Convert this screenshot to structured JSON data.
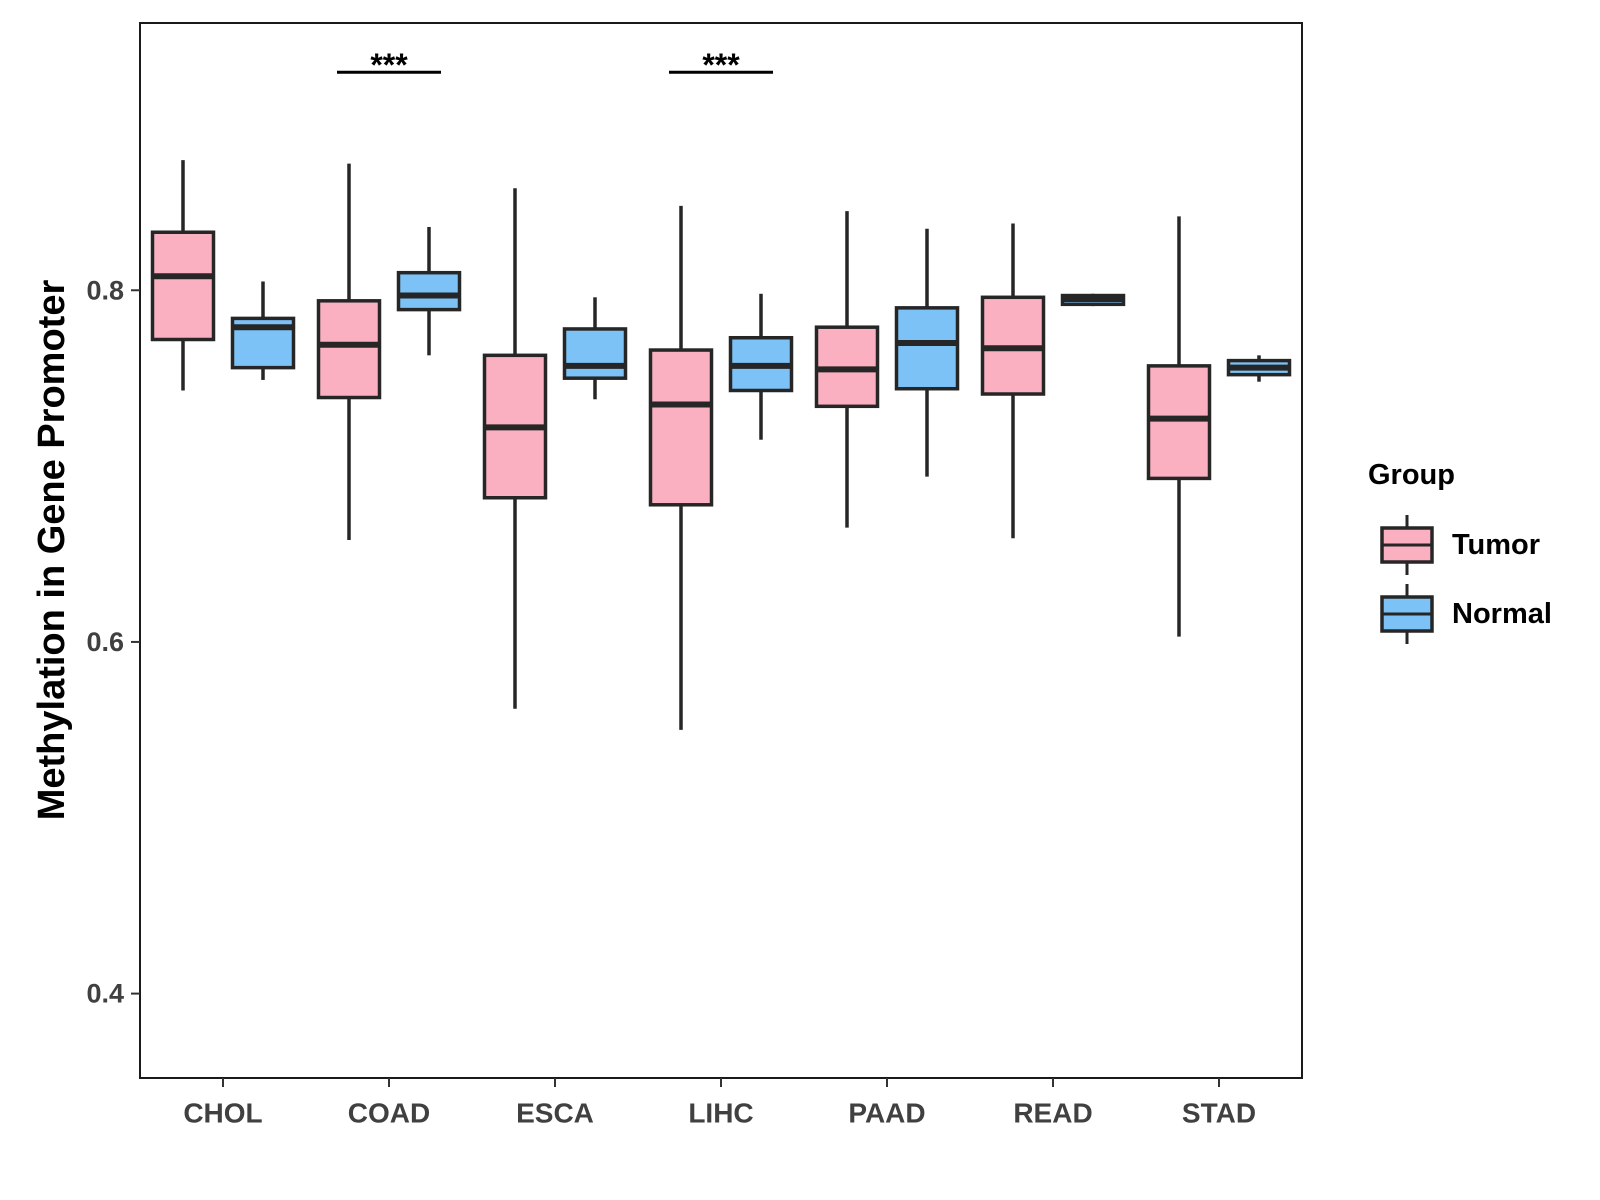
{
  "chart_data": {
    "type": "boxplot",
    "title": "",
    "xlabel": "",
    "ylabel": "Methylation in Gene Promoter",
    "ylim": [
      0.352,
      0.952
    ],
    "yticks": [
      0.4,
      0.6,
      0.8
    ],
    "ytick_labels": [
      "0.4",
      "0.6",
      "0.8"
    ],
    "categories": [
      "CHOL",
      "COAD",
      "ESCA",
      "LIHC",
      "PAAD",
      "READ",
      "STAD"
    ],
    "legend": {
      "title": "Group",
      "position": "right",
      "entries": [
        {
          "name": "Tumor",
          "color": "#fbb0c2"
        },
        {
          "name": "Normal",
          "color": "#7cc2f7"
        }
      ]
    },
    "series": [
      {
        "name": "Tumor",
        "color": "#fbb0c2",
        "boxes": [
          {
            "category": "CHOL",
            "whisker_low": 0.743,
            "q1": 0.772,
            "median": 0.808,
            "q3": 0.833,
            "whisker_high": 0.874
          },
          {
            "category": "COAD",
            "whisker_low": 0.658,
            "q1": 0.739,
            "median": 0.769,
            "q3": 0.794,
            "whisker_high": 0.872
          },
          {
            "category": "ESCA",
            "whisker_low": 0.562,
            "q1": 0.682,
            "median": 0.722,
            "q3": 0.763,
            "whisker_high": 0.858
          },
          {
            "category": "LIHC",
            "whisker_low": 0.55,
            "q1": 0.678,
            "median": 0.735,
            "q3": 0.766,
            "whisker_high": 0.848
          },
          {
            "category": "PAAD",
            "whisker_low": 0.665,
            "q1": 0.734,
            "median": 0.755,
            "q3": 0.779,
            "whisker_high": 0.845
          },
          {
            "category": "READ",
            "whisker_low": 0.659,
            "q1": 0.741,
            "median": 0.767,
            "q3": 0.796,
            "whisker_high": 0.838
          },
          {
            "category": "STAD",
            "whisker_low": 0.603,
            "q1": 0.693,
            "median": 0.727,
            "q3": 0.757,
            "whisker_high": 0.842
          }
        ]
      },
      {
        "name": "Normal",
        "color": "#7cc2f7",
        "boxes": [
          {
            "category": "CHOL",
            "whisker_low": 0.749,
            "q1": 0.756,
            "median": 0.779,
            "q3": 0.784,
            "whisker_high": 0.805
          },
          {
            "category": "COAD",
            "whisker_low": 0.763,
            "q1": 0.789,
            "median": 0.797,
            "q3": 0.81,
            "whisker_high": 0.836
          },
          {
            "category": "ESCA",
            "whisker_low": 0.738,
            "q1": 0.75,
            "median": 0.757,
            "q3": 0.778,
            "whisker_high": 0.796
          },
          {
            "category": "LIHC",
            "whisker_low": 0.715,
            "q1": 0.743,
            "median": 0.757,
            "q3": 0.773,
            "whisker_high": 0.798
          },
          {
            "category": "PAAD",
            "whisker_low": 0.694,
            "q1": 0.744,
            "median": 0.77,
            "q3": 0.79,
            "whisker_high": 0.835
          },
          {
            "category": "READ",
            "whisker_low": 0.791,
            "q1": 0.792,
            "median": 0.795,
            "q3": 0.797,
            "whisker_high": 0.798
          },
          {
            "category": "STAD",
            "whisker_low": 0.748,
            "q1": 0.752,
            "median": 0.756,
            "q3": 0.76,
            "whisker_high": 0.763
          }
        ]
      }
    ],
    "annotations": [
      {
        "category": "COAD",
        "label": "***",
        "y": 0.924
      },
      {
        "category": "LIHC",
        "label": "***",
        "y": 0.924
      }
    ]
  }
}
